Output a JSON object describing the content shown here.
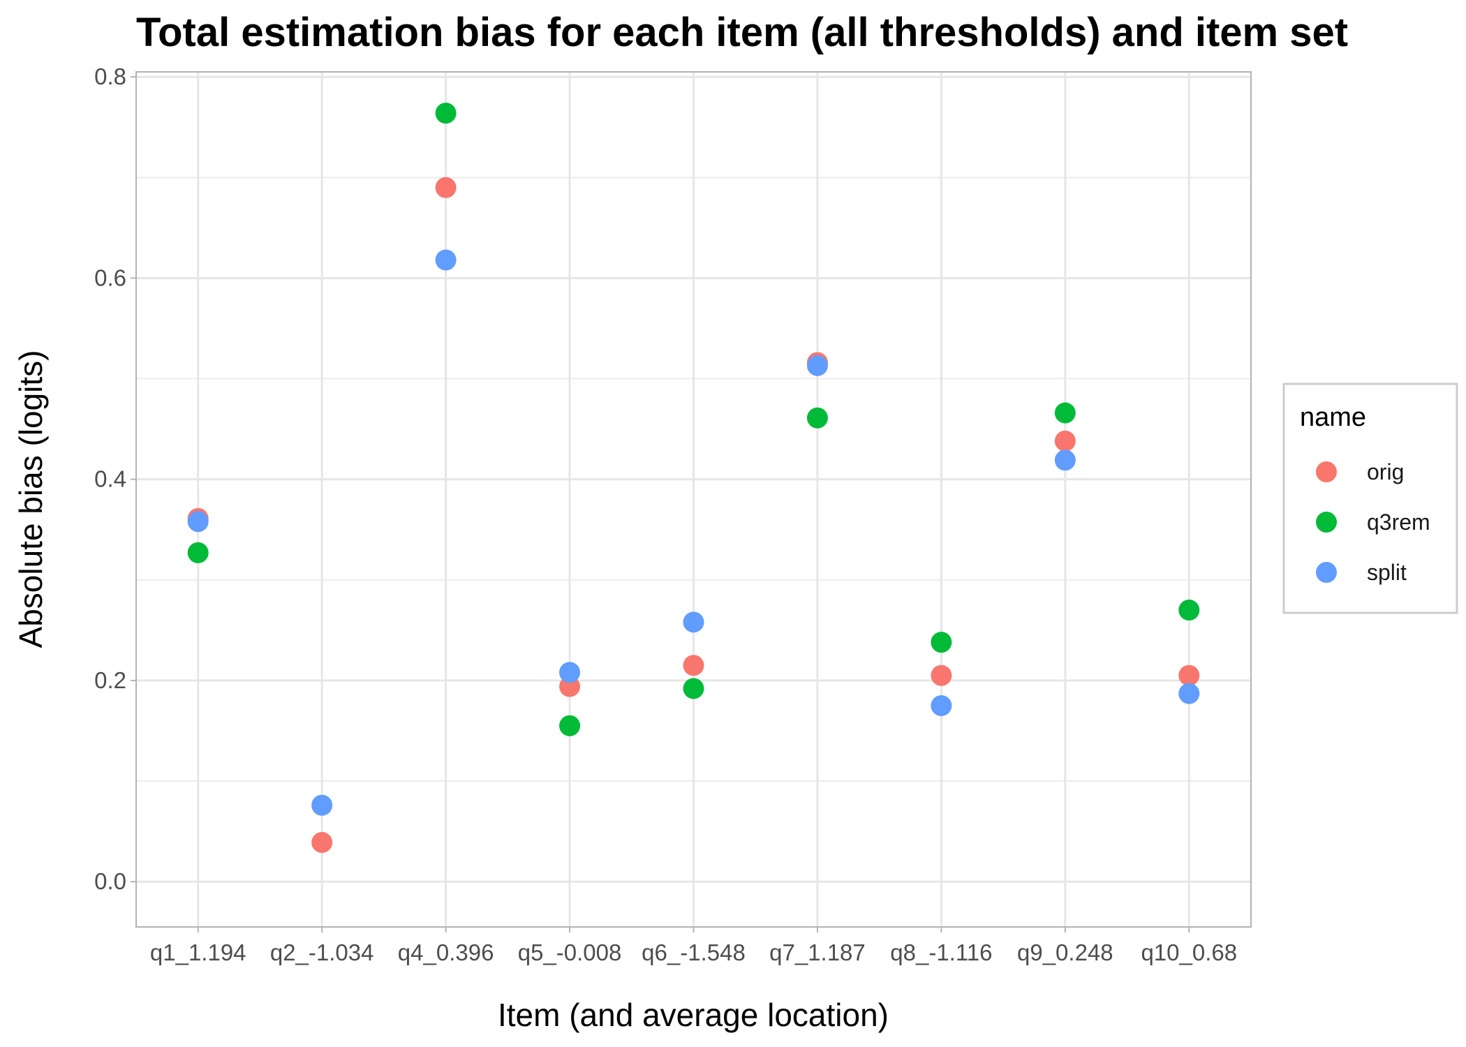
{
  "chart_data": {
    "type": "scatter",
    "title": "Total estimation bias for each item (all thresholds) and item set",
    "xlabel": "Item (and average location)",
    "ylabel": "Absolute bias (logits)",
    "categories": [
      "q1_1.194",
      "q2_-1.034",
      "q4_0.396",
      "q5_-0.008",
      "q6_-1.548",
      "q7_1.187",
      "q8_-1.116",
      "q9_0.248",
      "q10_0.68"
    ],
    "ylim": [
      -0.045,
      0.805
    ],
    "yticks": [
      0.0,
      0.2,
      0.4,
      0.6,
      0.8
    ],
    "ytick_labels": [
      "0.0",
      "0.2",
      "0.4",
      "0.6",
      "0.8"
    ],
    "grid": true,
    "legend": {
      "title": "name",
      "position": "right"
    },
    "series": [
      {
        "name": "orig",
        "color": "#F8766D",
        "values": [
          0.361,
          0.039,
          0.69,
          0.194,
          0.215,
          0.516,
          0.205,
          0.438,
          0.205
        ]
      },
      {
        "name": "q3rem",
        "color": "#00BA38",
        "values": [
          0.327,
          null,
          0.764,
          0.155,
          0.192,
          0.461,
          0.238,
          0.466,
          0.27
        ]
      },
      {
        "name": "split",
        "color": "#619CFF",
        "values": [
          0.358,
          0.076,
          0.618,
          0.208,
          0.258,
          0.513,
          0.175,
          0.419,
          0.187
        ]
      }
    ]
  }
}
